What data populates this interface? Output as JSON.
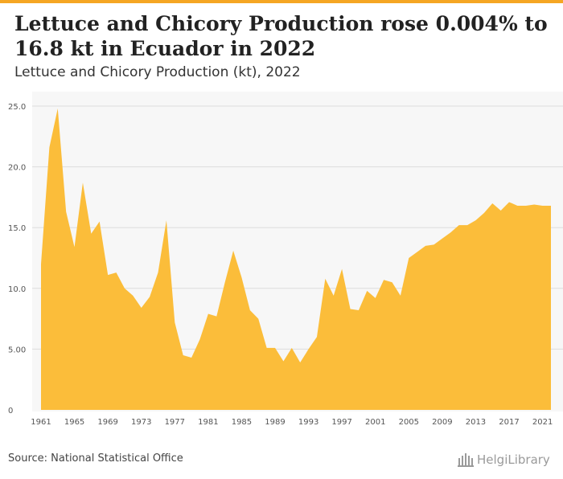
{
  "header": {
    "title": "Lettuce and Chicory Production rose 0.004% to 16.8 kt in Ecuador in 2022",
    "subtitle": "Lettuce and Chicory Production (kt), 2022"
  },
  "footer": {
    "source": "Source: National Statistical Office",
    "logo_text": "HelgiLibrary"
  },
  "colors": {
    "area_fill": "#fbbd3a",
    "accent_bar": "#f5a623",
    "plot_background": "#f7f7f7",
    "grid": "#dddddd"
  },
  "chart_data": {
    "type": "area",
    "title": "Lettuce and Chicory Production (kt), 2022",
    "xlabel": "",
    "ylabel": "",
    "x": [
      1961,
      1962,
      1963,
      1964,
      1965,
      1966,
      1967,
      1968,
      1969,
      1970,
      1971,
      1972,
      1973,
      1974,
      1975,
      1976,
      1977,
      1978,
      1979,
      1980,
      1981,
      1982,
      1983,
      1984,
      1985,
      1986,
      1987,
      1988,
      1989,
      1990,
      1991,
      1992,
      1993,
      1994,
      1995,
      1996,
      1997,
      1998,
      1999,
      2000,
      2001,
      2002,
      2003,
      2004,
      2005,
      2006,
      2007,
      2008,
      2009,
      2010,
      2011,
      2012,
      2013,
      2014,
      2015,
      2016,
      2017,
      2018,
      2019,
      2020,
      2021,
      2022
    ],
    "series": [
      {
        "values": [
          12.0,
          21.6,
          24.8,
          16.3,
          13.4,
          18.7,
          14.5,
          15.5,
          11.1,
          11.3,
          10.0,
          9.4,
          8.4,
          9.3,
          11.3,
          15.6,
          7.2,
          4.5,
          4.3,
          5.8,
          7.9,
          7.7,
          10.5,
          13.1,
          10.9,
          8.2,
          7.5,
          5.1,
          5.1,
          4.0,
          5.1,
          3.9,
          5.0,
          6.0,
          10.8,
          9.4,
          11.6,
          8.3,
          8.2,
          9.8,
          9.2,
          10.7,
          10.5,
          9.4,
          12.5,
          13.0,
          13.5,
          13.6,
          14.1,
          14.6,
          15.2,
          15.2,
          15.6,
          16.2,
          17.0,
          16.4,
          17.1,
          16.8,
          16.8,
          16.9,
          16.8,
          16.8
        ]
      }
    ],
    "xticks": [
      "1961",
      "1965",
      "1969",
      "1973",
      "1977",
      "1981",
      "1985",
      "1989",
      "1993",
      "1997",
      "2001",
      "2005",
      "2009",
      "2013",
      "2017",
      "2021"
    ],
    "yticks": [
      "0",
      "5.00",
      "10.0",
      "15.0",
      "20.0",
      "25.0"
    ],
    "ylim": [
      0,
      25
    ],
    "grid": true,
    "legend": "none"
  }
}
